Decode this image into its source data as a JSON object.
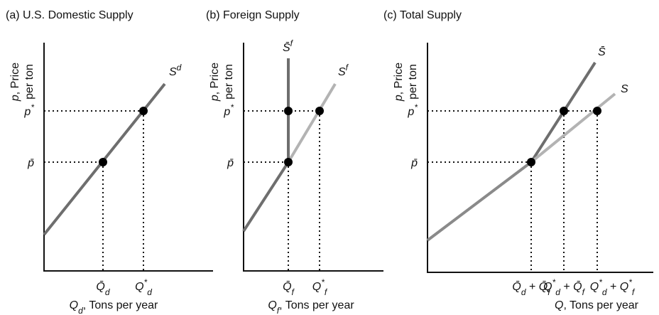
{
  "panels": [
    {
      "title": "(a) U.S. Domestic Supply",
      "y_label": [
        [
          {
            "base": "p"
          },
          {
            "base": ", Price"
          }
        ],
        [
          {
            "base": "per ton"
          }
        ]
      ],
      "y_ticks": [
        [
          {
            "base": "p",
            "sup": "*"
          }
        ],
        [
          {
            "base": "p̄"
          }
        ]
      ],
      "x_ticks": [
        [
          {
            "base": "Q̄",
            "sub": "d"
          }
        ],
        [
          {
            "base": "Q",
            "sub": "d",
            "sup": "*"
          }
        ]
      ],
      "x_label": [
        {
          "base": "Q",
          "sub": "d"
        },
        {
          "base": ", Tons per year"
        }
      ],
      "curves": [
        [
          {
            "base": "S",
            "sup": "d"
          }
        ]
      ]
    },
    {
      "title": "(b) Foreign Supply",
      "y_label": [
        [
          {
            "base": "p"
          },
          {
            "base": ", Price"
          }
        ],
        [
          {
            "base": "per ton"
          }
        ]
      ],
      "y_ticks": [
        [
          {
            "base": "p",
            "sup": "*"
          }
        ],
        [
          {
            "base": "p̄"
          }
        ]
      ],
      "x_ticks": [
        [
          {
            "base": "Q̄",
            "sub": "f"
          }
        ],
        [
          {
            "base": "Q",
            "sub": "f",
            "sup": "*"
          }
        ]
      ],
      "x_label": [
        {
          "base": "Q",
          "sub": "f"
        },
        {
          "base": ", Tons per year"
        }
      ],
      "curves": [
        [
          {
            "base": "S̄",
            "sup": "f"
          }
        ],
        [
          {
            "base": "S",
            "sup": "f"
          }
        ]
      ]
    },
    {
      "title": "(c) Total Supply",
      "y_label": [
        [
          {
            "base": "p"
          },
          {
            "base": ", Price"
          }
        ],
        [
          {
            "base": "per ton"
          }
        ]
      ],
      "y_ticks": [
        [
          {
            "base": "p",
            "sup": "*"
          }
        ],
        [
          {
            "base": "p̄"
          }
        ]
      ],
      "x_ticks": [
        [
          {
            "base": "Q̄",
            "sub": "d"
          },
          {
            "base": " + "
          },
          {
            "base": "Q̄",
            "sub": "f"
          }
        ],
        [
          {
            "base": "Q",
            "sub": "d",
            "sup": "*"
          },
          {
            "base": " + "
          },
          {
            "base": "Q̄",
            "sub": "f"
          }
        ],
        [
          {
            "base": "Q",
            "sub": "d",
            "sup": "*"
          },
          {
            "base": " + "
          },
          {
            "base": "Q",
            "sub": "f",
            "sup": "*"
          }
        ]
      ],
      "x_label": [
        {
          "base": "Q"
        },
        {
          "base": ", Tons per year"
        }
      ],
      "curves": [
        [
          {
            "base": "S̄"
          }
        ],
        [
          {
            "base": "S"
          }
        ]
      ]
    }
  ]
}
